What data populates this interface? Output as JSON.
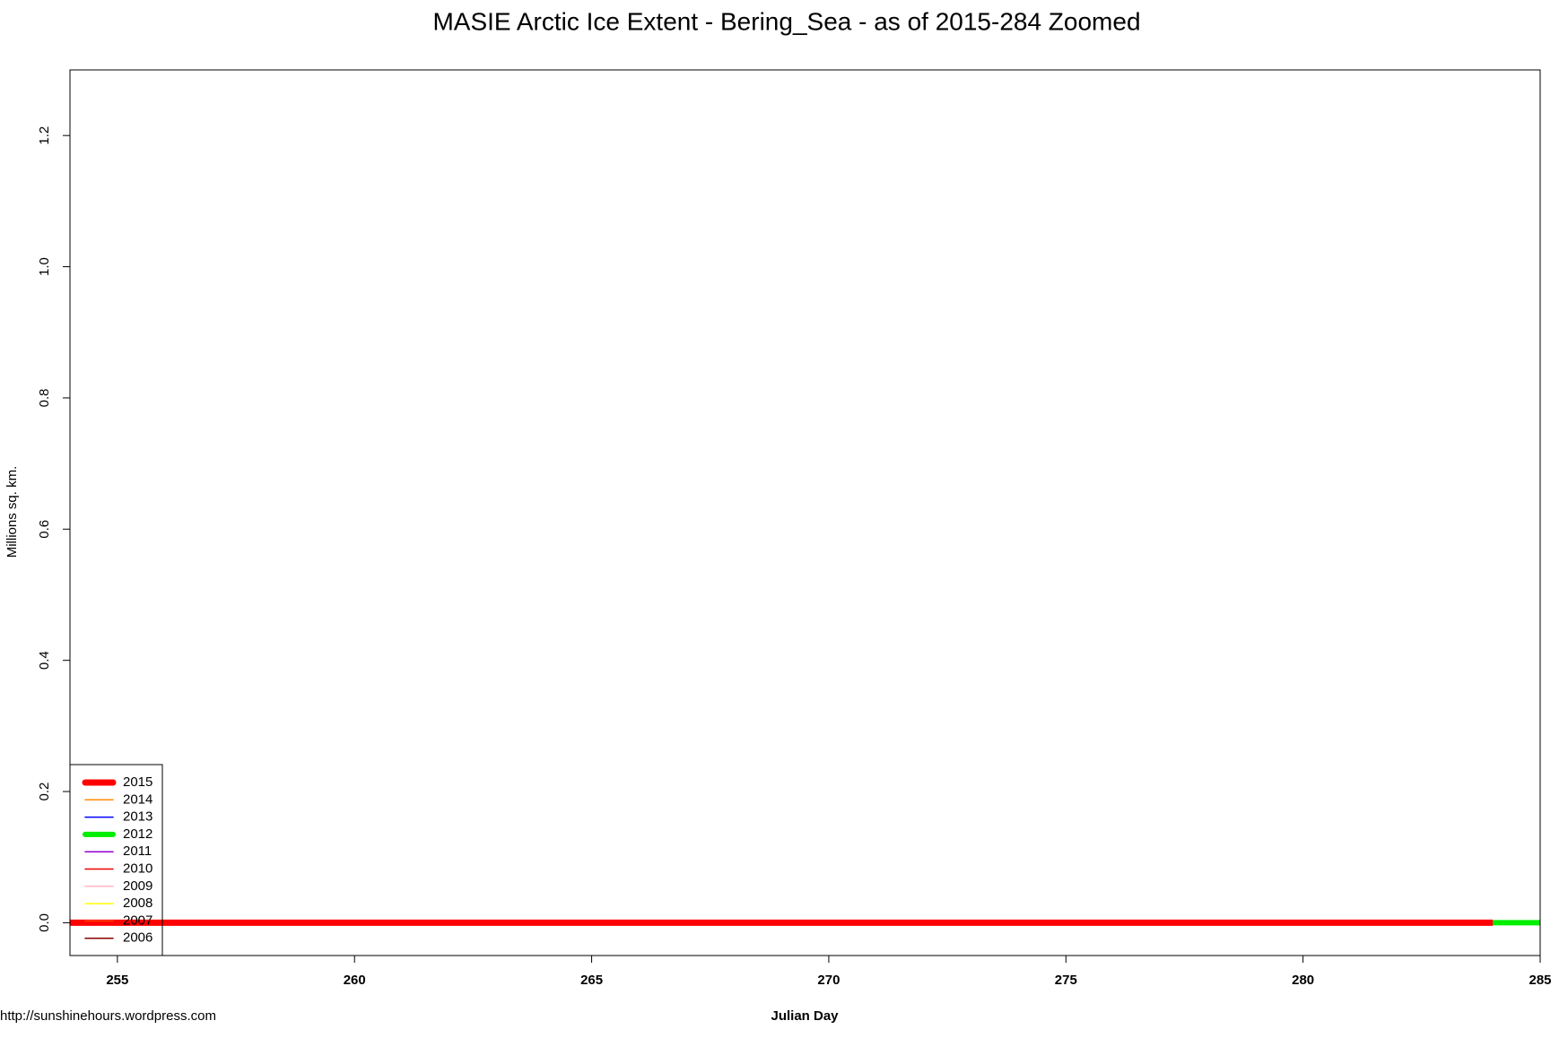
{
  "chart_data": {
    "type": "line",
    "title": "MASIE Arctic Ice Extent - Bering_Sea - as of 2015-284 Zoomed",
    "x_label": "Julian Day",
    "y_label": "Millions sq. km.",
    "source": "http://sunshinehours.wordpress.com",
    "x": [
      254,
      255,
      256,
      257,
      258,
      259,
      260,
      261,
      262,
      263,
      264,
      265,
      266,
      267,
      268,
      269,
      270,
      271,
      272,
      273,
      274,
      275,
      276,
      277,
      278,
      279,
      280,
      281,
      282,
      283,
      284,
      285
    ],
    "series": [
      {
        "name": "2015",
        "color": "#ff0000",
        "width": 7,
        "values": [
          0,
          0,
          0,
          0,
          0,
          0,
          0,
          0,
          0,
          0,
          0,
          0,
          0,
          0,
          0,
          0,
          0,
          0,
          0,
          0,
          0,
          0,
          0,
          0,
          0,
          0,
          0,
          0,
          0,
          0,
          0,
          null
        ]
      },
      {
        "name": "2014",
        "color": "#ff8c00",
        "width": 1.5,
        "values": [
          0,
          0,
          0,
          0,
          0,
          0,
          0,
          0,
          0,
          0,
          0,
          0,
          0,
          0,
          0,
          0,
          0,
          0,
          0,
          0,
          0,
          0,
          0,
          0,
          0,
          0,
          0,
          0,
          0,
          0,
          0,
          null
        ]
      },
      {
        "name": "2013",
        "color": "#0000ff",
        "width": 1.5,
        "values": [
          0,
          0,
          0,
          0,
          0,
          0,
          0,
          0,
          0,
          0,
          0,
          0,
          0,
          0,
          0,
          0,
          0,
          0,
          0,
          0,
          0,
          0,
          0,
          0,
          0,
          0,
          0,
          0,
          0,
          0,
          0,
          null
        ]
      },
      {
        "name": "2012",
        "color": "#00ee00",
        "width": 6,
        "values": [
          0,
          0,
          0,
          0,
          0,
          0,
          0,
          0,
          0,
          0,
          0,
          0,
          0,
          0,
          0,
          0,
          0,
          0,
          0,
          0,
          0,
          0,
          0,
          0,
          0,
          0,
          0,
          0,
          0,
          0,
          0,
          0
        ]
      },
      {
        "name": "2011",
        "color": "#9400d3",
        "width": 1.5,
        "values": [
          0,
          0,
          0,
          0,
          0,
          0,
          0,
          0,
          0,
          0,
          0,
          0,
          0,
          0,
          0,
          0,
          0,
          0,
          0,
          0,
          0,
          0,
          0,
          0,
          0,
          0,
          0,
          0,
          0,
          0,
          0,
          null
        ]
      },
      {
        "name": "2010",
        "color": "#ee0000",
        "width": 1.5,
        "values": [
          0,
          0,
          0,
          0,
          0,
          0,
          0,
          0,
          0,
          0,
          0,
          0,
          0,
          0,
          0,
          0,
          0,
          0,
          0,
          0,
          0,
          0,
          0,
          0,
          0,
          0,
          0,
          0,
          0,
          0,
          0,
          null
        ]
      },
      {
        "name": "2009",
        "color": "#ffb6c1",
        "width": 1.5,
        "values": [
          0,
          0,
          0,
          0,
          0,
          0,
          0,
          0,
          0,
          0,
          0,
          0,
          0,
          0,
          0,
          0,
          0,
          0,
          0,
          0,
          0,
          0,
          0,
          0,
          0,
          0,
          0,
          0,
          0,
          0,
          0,
          null
        ]
      },
      {
        "name": "2008",
        "color": "#ffff00",
        "width": 1.5,
        "values": [
          0,
          0,
          0,
          0,
          0,
          0,
          0,
          0,
          0,
          0,
          0,
          0,
          0,
          0,
          0,
          0,
          0,
          0,
          0,
          0,
          0,
          0,
          0,
          0,
          0,
          0,
          0,
          0,
          0,
          0,
          0,
          null
        ]
      },
      {
        "name": "2007",
        "color": "#ff4500",
        "width": 1.5,
        "values": [
          0,
          0,
          0,
          0,
          0,
          0,
          0,
          0,
          0,
          0,
          0,
          0,
          0,
          0,
          0,
          0,
          0,
          0,
          0,
          0,
          0,
          0,
          0,
          0,
          0,
          0,
          0,
          0,
          0,
          0,
          0,
          null
        ]
      },
      {
        "name": "2006",
        "color": "#8b0000",
        "width": 1.5,
        "values": [
          0,
          0,
          0,
          0,
          0,
          0,
          0,
          0,
          0,
          0,
          0,
          0,
          0,
          0,
          0,
          0,
          0,
          0,
          0,
          0,
          0,
          0,
          0,
          0,
          0,
          0,
          0,
          0,
          0,
          0,
          0,
          null
        ]
      }
    ],
    "xlim": [
      254,
      285
    ],
    "xticks": [
      255,
      260,
      265,
      270,
      275,
      280,
      285
    ],
    "ylim": [
      -0.05,
      1.3
    ],
    "yticks": [
      {
        "value": 0,
        "label": "0.0"
      },
      0.2,
      0.4,
      0.6,
      0.8,
      {
        "value": 1,
        "label": "1.0"
      },
      1.2
    ],
    "grid": false,
    "legend": "bottomleft"
  }
}
